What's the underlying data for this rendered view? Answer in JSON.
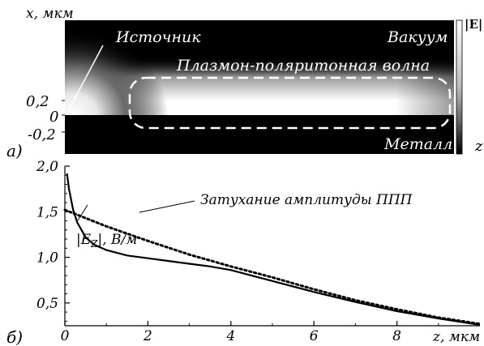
{
  "panel_a": {
    "label": "а)",
    "y_axis_label": "x, мкм",
    "y_ticks": [
      "0,2",
      "0",
      "-0,2"
    ],
    "colorbar_label": "|E|",
    "z_axis_label": "z",
    "regions": {
      "source": "Источник",
      "vacuum": "Вакуум",
      "wave": "Плазмон-поляритонная волна",
      "metal": "Металл"
    }
  },
  "panel_b": {
    "label": "б)",
    "x_axis_label": "z, мкм",
    "curve_label": "|E",
    "curve_label_sub": "Z",
    "curve_label_rest": "|, В/м",
    "dotted_label": "Затухание амплитуды ППП"
  },
  "chart_data": {
    "type": "line",
    "xlabel": "z, мкм",
    "ylabel": "",
    "xlim": [
      0,
      10
    ],
    "ylim": [
      0.25,
      2.0
    ],
    "x_ticks": [
      "0",
      "2",
      "4",
      "6",
      "8"
    ],
    "y_ticks": [
      "2,0",
      "1,5",
      "1,0",
      "0,5"
    ],
    "y_tick_values": [
      2.0,
      1.5,
      1.0,
      0.5
    ],
    "grid": false,
    "series": [
      {
        "name": "|EZ|, В/м",
        "style": "solid",
        "x": [
          0.05,
          0.1,
          0.2,
          0.3,
          0.5,
          0.7,
          1.0,
          1.5,
          2.0,
          2.5,
          3.0,
          3.5,
          4.0,
          5.0,
          6.0,
          7.0,
          8.0,
          9.0,
          10.0
        ],
        "y": [
          1.92,
          1.75,
          1.52,
          1.38,
          1.22,
          1.14,
          1.08,
          1.02,
          0.99,
          0.96,
          0.93,
          0.9,
          0.86,
          0.74,
          0.62,
          0.51,
          0.41,
          0.33,
          0.26
        ]
      },
      {
        "name": "Затухание амплитуды ППП",
        "style": "dotted",
        "x": [
          0,
          1,
          2,
          3,
          4,
          5,
          6,
          7,
          8,
          9,
          10
        ],
        "y": [
          1.52,
          1.34,
          1.18,
          1.03,
          0.9,
          0.78,
          0.65,
          0.53,
          0.43,
          0.34,
          0.27
        ]
      }
    ]
  }
}
